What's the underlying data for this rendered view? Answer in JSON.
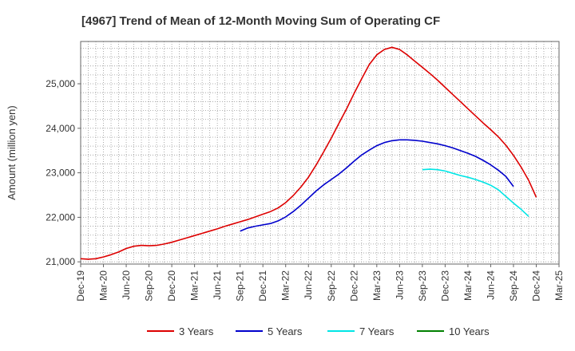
{
  "chart_data": {
    "type": "line",
    "title": "[4967]  Trend of Mean of 12-Month Moving Sum of Operating CF",
    "xlabel": "",
    "ylabel": "Amount (million yen)",
    "ylim": [
      20950,
      25950
    ],
    "yticks": [
      21000,
      22000,
      23000,
      24000,
      25000
    ],
    "ytick_labels": [
      "21,000",
      "22,000",
      "23,000",
      "24,000",
      "25,000"
    ],
    "x_tick_labels": [
      "Dec-19",
      "Mar-20",
      "Jun-20",
      "Sep-20",
      "Dec-20",
      "Mar-21",
      "Jun-21",
      "Sep-21",
      "Dec-21",
      "Mar-22",
      "Jun-22",
      "Sep-22",
      "Dec-22",
      "Mar-23",
      "Jun-23",
      "Sep-23",
      "Dec-23",
      "Mar-24",
      "Jun-24",
      "Sep-24",
      "Dec-24",
      "Mar-25"
    ],
    "x_start": "Dec-19",
    "x_end": "Mar-25",
    "grid": true,
    "legend_position": "bottom",
    "series": [
      {
        "name": "3 Years",
        "color": "#dd0000",
        "start_index": 0,
        "values": [
          21070,
          21060,
          21070,
          21110,
          21160,
          21220,
          21300,
          21350,
          21370,
          21360,
          21370,
          21400,
          21440,
          21490,
          21540,
          21590,
          21640,
          21690,
          21740,
          21800,
          21850,
          21900,
          21950,
          22010,
          22070,
          22130,
          22210,
          22330,
          22490,
          22680,
          22900,
          23170,
          23470,
          23780,
          24110,
          24430,
          24780,
          25110,
          25430,
          25650,
          25770,
          25820,
          25770,
          25650,
          25510,
          25370,
          25230,
          25080,
          24920,
          24760,
          24600,
          24440,
          24280,
          24120,
          23970,
          23810,
          23620,
          23390,
          23130,
          22830,
          22450
        ]
      },
      {
        "name": "5 Years",
        "color": "#0000cc",
        "start_index": 21,
        "values": [
          21690,
          21760,
          21800,
          21830,
          21860,
          21920,
          22010,
          22130,
          22270,
          22430,
          22590,
          22730,
          22850,
          22970,
          23110,
          23260,
          23400,
          23510,
          23610,
          23680,
          23720,
          23740,
          23740,
          23730,
          23710,
          23680,
          23650,
          23610,
          23560,
          23500,
          23440,
          23370,
          23280,
          23180,
          23060,
          22920,
          22690
        ]
      },
      {
        "name": "7 Years",
        "color": "#00e5e5",
        "start_index": 45,
        "values": [
          23070,
          23080,
          23070,
          23040,
          22990,
          22940,
          22900,
          22850,
          22790,
          22720,
          22620,
          22470,
          22320,
          22180,
          22020
        ]
      },
      {
        "name": "10 Years",
        "color": "#008000",
        "start_index": 0,
        "values": []
      }
    ]
  }
}
